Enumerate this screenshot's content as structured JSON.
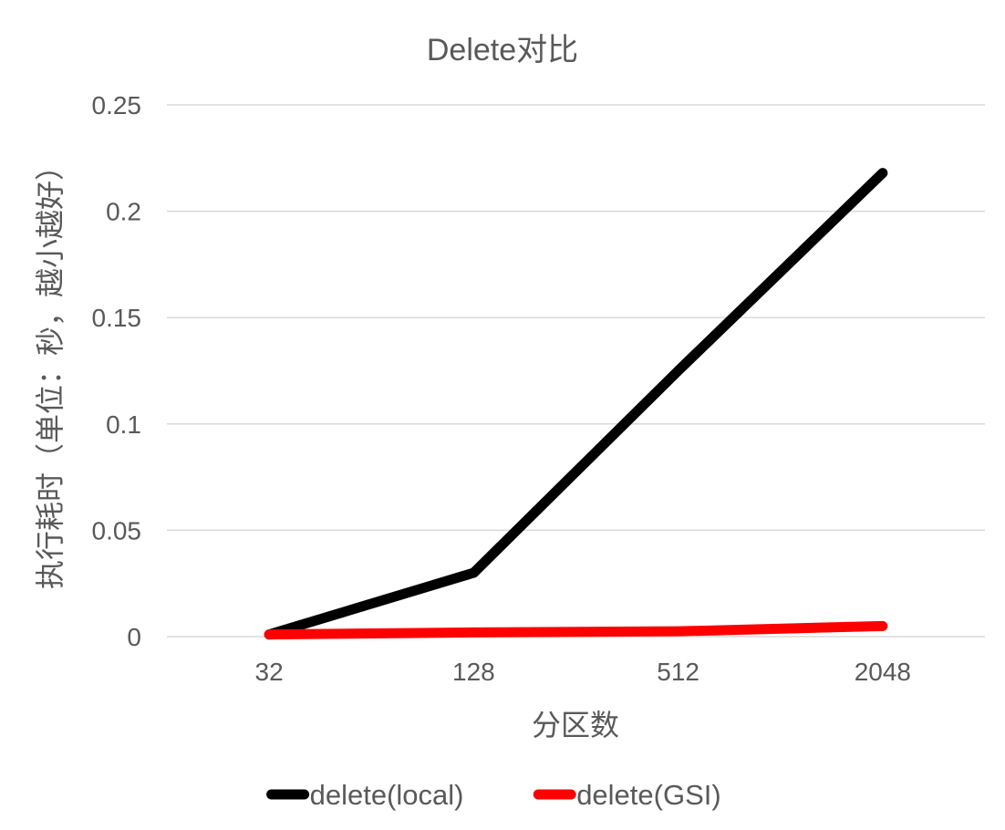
{
  "chart_data": {
    "type": "line",
    "title": "Delete对比",
    "xlabel": "分区数",
    "ylabel": "执行耗时（单位：秒，越小越好）",
    "categories": [
      "32",
      "128",
      "512",
      "2048"
    ],
    "ylim": [
      0,
      0.25
    ],
    "yticks": [
      "0",
      "0.05",
      "0.1",
      "0.15",
      "0.2",
      "0.25"
    ],
    "grid": true,
    "legend_position": "bottom",
    "series": [
      {
        "name": "delete(local)",
        "color": "#000000",
        "values": [
          0.001,
          0.03,
          0.125,
          0.218
        ]
      },
      {
        "name": "delete(GSI)",
        "color": "#ff0000",
        "values": [
          0.001,
          0.002,
          0.0025,
          0.005
        ]
      }
    ]
  }
}
